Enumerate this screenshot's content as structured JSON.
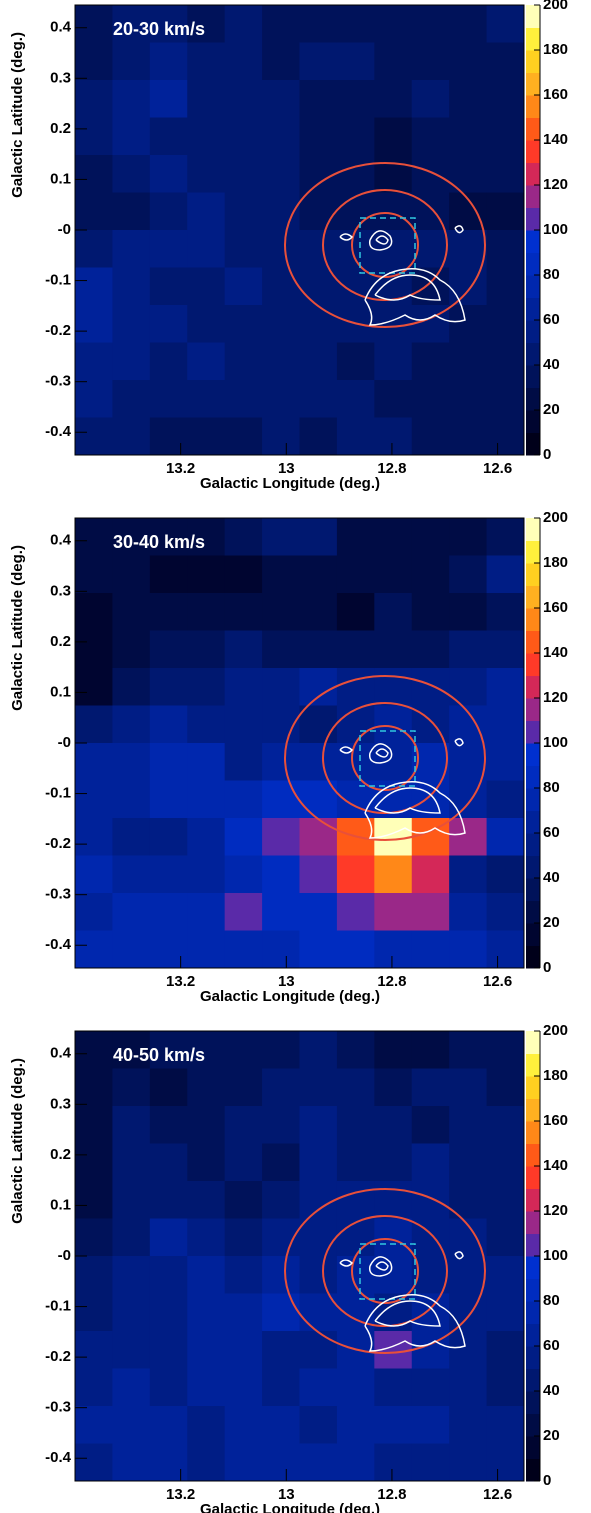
{
  "chart_data": [
    {
      "type": "heatmap",
      "title": "20-30 km/s",
      "x_label": "Galactic Longitude (deg.)",
      "y_label": "Galactic Latitude (deg.)",
      "xlim": [
        13.4,
        12.55
      ],
      "ylim": [
        -0.445,
        0.445
      ],
      "xticks": [
        13.2,
        13,
        12.8,
        12.6
      ],
      "yticks": [
        -0.4,
        -0.3,
        -0.2,
        -0.1,
        {
          "value": 0,
          "label": "-0"
        },
        0.1,
        0.2,
        0.3,
        0.4
      ],
      "values": [
        [
          35,
          40,
          40,
          35,
          40,
          35,
          30,
          30,
          30,
          35,
          30,
          40
        ],
        [
          30,
          45,
          50,
          45,
          40,
          35,
          40,
          40,
          35,
          30,
          30,
          35
        ],
        [
          40,
          50,
          60,
          45,
          40,
          40,
          35,
          30,
          35,
          40,
          35,
          30
        ],
        [
          40,
          50,
          45,
          45,
          40,
          40,
          35,
          30,
          25,
          30,
          35,
          30
        ],
        [
          35,
          45,
          50,
          45,
          40,
          40,
          35,
          30,
          25,
          30,
          30,
          35
        ],
        [
          30,
          35,
          40,
          55,
          45,
          40,
          35,
          30,
          30,
          30,
          25,
          25
        ],
        [
          45,
          50,
          55,
          50,
          45,
          45,
          40,
          40,
          45,
          40,
          40,
          35
        ],
        [
          60,
          50,
          45,
          45,
          50,
          45,
          40,
          45,
          40,
          35,
          40,
          35
        ],
        [
          65,
          55,
          50,
          45,
          45,
          45,
          40,
          40,
          45,
          40,
          35,
          30
        ],
        [
          55,
          50,
          45,
          50,
          45,
          40,
          40,
          35,
          40,
          35,
          30,
          30
        ],
        [
          50,
          45,
          45,
          40,
          45,
          45,
          40,
          40,
          35,
          30,
          30,
          30
        ],
        [
          45,
          40,
          35,
          30,
          35,
          40,
          35,
          40,
          40,
          35,
          30,
          30
        ]
      ],
      "colorbar": {
        "lim": [
          0,
          200
        ],
        "ticks": [
          0,
          20,
          40,
          60,
          80,
          100,
          120,
          140,
          160,
          180,
          200
        ],
        "colors": [
          "#00001a",
          "#000530",
          "#000c45",
          "#00125a",
          "#001870",
          "#001d85",
          "#00229a",
          "#0027ae",
          "#002cc0",
          "#0030d0",
          "#5a2aa8",
          "#9a2888",
          "#d42858",
          "#ff3a28",
          "#ff5a18",
          "#ff8818",
          "#ffb020",
          "#ffd020",
          "#fff03c",
          "#ffffb8"
        ]
      }
    },
    {
      "type": "heatmap",
      "title": "30-40 km/s",
      "x_label": "Galactic Longitude (deg.)",
      "y_label": "Galactic Latitude (deg.)",
      "xlim": [
        13.4,
        12.55
      ],
      "ylim": [
        -0.445,
        0.445
      ],
      "xticks": [
        13.2,
        13,
        12.8,
        12.6
      ],
      "yticks": [
        -0.4,
        -0.3,
        -0.2,
        -0.1,
        {
          "value": 0,
          "label": "-0"
        },
        0.1,
        0.2,
        0.3,
        0.4
      ],
      "values": [
        [
          20,
          20,
          20,
          20,
          30,
          40,
          40,
          20,
          25,
          20,
          25,
          30
        ],
        [
          20,
          20,
          15,
          15,
          15,
          25,
          25,
          20,
          25,
          25,
          35,
          50
        ],
        [
          15,
          20,
          20,
          20,
          20,
          25,
          25,
          15,
          30,
          25,
          25,
          30
        ],
        [
          10,
          20,
          30,
          35,
          40,
          35,
          30,
          30,
          30,
          35,
          40,
          45
        ],
        [
          10,
          30,
          40,
          45,
          50,
          55,
          60,
          55,
          50,
          55,
          50,
          60
        ],
        [
          40,
          50,
          60,
          50,
          55,
          55,
          45,
          55,
          60,
          55,
          60,
          60
        ],
        [
          60,
          65,
          70,
          70,
          55,
          60,
          60,
          65,
          65,
          70,
          65,
          60
        ],
        [
          60,
          65,
          70,
          70,
          75,
          80,
          80,
          70,
          70,
          75,
          65,
          55
        ],
        [
          65,
          55,
          55,
          60,
          80,
          105,
          115,
          140,
          195,
          140,
          115,
          70
        ],
        [
          70,
          60,
          65,
          65,
          75,
          85,
          105,
          135,
          155,
          125,
          50,
          45
        ],
        [
          65,
          75,
          75,
          70,
          105,
          85,
          85,
          100,
          112,
          112,
          60,
          55
        ],
        [
          70,
          70,
          75,
          75,
          75,
          75,
          80,
          80,
          75,
          70,
          70,
          65
        ]
      ],
      "colorbar": {
        "lim": [
          0,
          200
        ],
        "ticks": [
          0,
          20,
          40,
          60,
          80,
          100,
          120,
          140,
          160,
          180,
          200
        ],
        "colors": [
          "#00001a",
          "#000530",
          "#000c45",
          "#00125a",
          "#001870",
          "#001d85",
          "#00229a",
          "#0027ae",
          "#002cc0",
          "#0030d0",
          "#5a2aa8",
          "#9a2888",
          "#d42858",
          "#ff3a28",
          "#ff5a18",
          "#ff8818",
          "#ffb020",
          "#ffd020",
          "#fff03c",
          "#ffffb8"
        ]
      }
    },
    {
      "type": "heatmap",
      "title": "40-50 km/s",
      "x_label": "Galactic Longitude (deg.)",
      "y_label": "Galactic Latitude (deg.)",
      "xlim": [
        13.4,
        12.55
      ],
      "ylim": [
        -0.445,
        0.445
      ],
      "xticks": [
        13.2,
        13,
        12.8,
        12.6
      ],
      "yticks": [
        -0.4,
        -0.3,
        -0.2,
        -0.1,
        {
          "value": 0,
          "label": "-0"
        },
        0.1,
        0.2,
        0.3,
        0.4
      ],
      "values": [
        [
          20,
          25,
          30,
          30,
          30,
          35,
          40,
          30,
          25,
          25,
          35,
          30
        ],
        [
          20,
          30,
          25,
          30,
          35,
          40,
          45,
          40,
          35,
          40,
          40,
          35
        ],
        [
          25,
          40,
          35,
          30,
          40,
          45,
          50,
          40,
          40,
          35,
          45,
          40
        ],
        [
          20,
          40,
          40,
          35,
          40,
          35,
          50,
          45,
          45,
          50,
          45,
          40
        ],
        [
          25,
          40,
          45,
          45,
          30,
          40,
          55,
          50,
          55,
          50,
          45,
          45
        ],
        [
          30,
          45,
          60,
          50,
          40,
          50,
          55,
          55,
          60,
          55,
          50,
          45
        ],
        [
          40,
          50,
          55,
          60,
          55,
          60,
          55,
          60,
          60,
          55,
          50,
          50
        ],
        [
          45,
          50,
          55,
          60,
          65,
          70,
          60,
          60,
          55,
          60,
          55,
          55
        ],
        [
          50,
          55,
          55,
          60,
          60,
          55,
          50,
          60,
          100,
          60,
          55,
          45
        ],
        [
          55,
          60,
          55,
          60,
          65,
          55,
          60,
          60,
          55,
          55,
          50,
          45
        ],
        [
          60,
          65,
          60,
          55,
          60,
          60,
          55,
          65,
          60,
          60,
          55,
          50
        ],
        [
          55,
          60,
          60,
          55,
          60,
          60,
          60,
          65,
          55,
          55,
          55,
          50
        ]
      ],
      "colorbar": {
        "lim": [
          0,
          200
        ],
        "ticks": [
          0,
          20,
          40,
          60,
          80,
          100,
          120,
          140,
          160,
          180,
          200
        ],
        "colors": [
          "#00001a",
          "#000530",
          "#000c45",
          "#00125a",
          "#001870",
          "#001d85",
          "#00229a",
          "#0027ae",
          "#002cc0",
          "#0030d0",
          "#5a2aa8",
          "#9a2888",
          "#d42858",
          "#ff3a28",
          "#ff5a18",
          "#ff8818",
          "#ffb020",
          "#ffd020",
          "#fff03c",
          "#ffffb8"
        ]
      }
    }
  ]
}
